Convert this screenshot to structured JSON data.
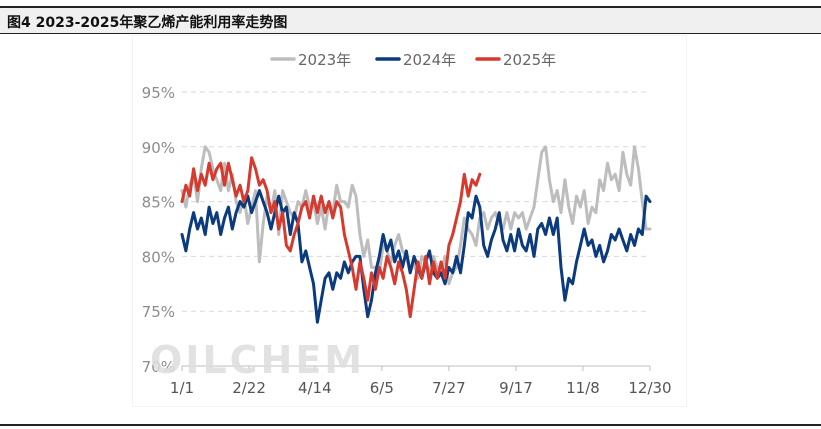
{
  "header": {
    "title": "图4 2023-2025年聚乙烯产能利用率走势图"
  },
  "watermark": "OILCHEM",
  "chart_data": {
    "type": "line",
    "title": "",
    "xlabel": "",
    "ylabel": "",
    "x_ticks": [
      "1/1",
      "2/22",
      "4/14",
      "6/5",
      "7/27",
      "9/17",
      "11/8",
      "12/30"
    ],
    "x_tick_days": [
      1,
      53,
      104,
      156,
      208,
      260,
      312,
      364
    ],
    "y_ticks": [
      "70%",
      "75%",
      "80%",
      "85%",
      "90%",
      "95%"
    ],
    "ylim": [
      70,
      95
    ],
    "xlim": [
      1,
      364
    ],
    "grid": true,
    "legend_position": "top",
    "series": [
      {
        "name": "2023年",
        "color": "#bdbdbd",
        "x": [
          1,
          4,
          7,
          10,
          13,
          16,
          19,
          22,
          25,
          28,
          31,
          34,
          37,
          40,
          43,
          46,
          49,
          52,
          55,
          58,
          61,
          64,
          67,
          70,
          73,
          76,
          79,
          82,
          85,
          88,
          91,
          94,
          97,
          100,
          103,
          106,
          109,
          112,
          115,
          118,
          121,
          124,
          127,
          130,
          133,
          136,
          139,
          142,
          145,
          148,
          151,
          154,
          157,
          160,
          163,
          166,
          169,
          172,
          175,
          178,
          181,
          184,
          187,
          190,
          193,
          196,
          199,
          202,
          205,
          208,
          211,
          214,
          217,
          220,
          223,
          226,
          229,
          232,
          235,
          238,
          241,
          244,
          247,
          250,
          253,
          256,
          259,
          262,
          265,
          268,
          271,
          274,
          277,
          280,
          283,
          286,
          289,
          292,
          295,
          298,
          301,
          304,
          307,
          310,
          313,
          316,
          319,
          322,
          325,
          328,
          331,
          334,
          337,
          340,
          343,
          346,
          349,
          352,
          355,
          358,
          361,
          364
        ],
        "values": [
          86,
          84.5,
          86.5,
          87.5,
          85,
          88,
          90,
          89.5,
          88,
          87,
          86,
          88.5,
          86,
          87.5,
          85,
          84,
          85.5,
          83,
          84.5,
          86,
          79.5,
          83,
          85.5,
          84,
          86,
          82,
          86,
          85,
          84,
          83.5,
          85,
          84.5,
          86,
          84.5,
          85,
          83,
          84.5,
          82.5,
          85,
          84,
          86.5,
          85,
          85,
          84.5,
          86.5,
          85.5,
          82,
          80,
          81.5,
          79,
          79,
          78.5,
          81,
          80.5,
          79.5,
          81,
          82,
          80.5,
          80,
          78.5,
          79.5,
          78,
          80,
          79.5,
          78.5,
          80,
          79,
          78.5,
          80,
          77.5,
          78.5,
          79,
          81,
          83.5,
          82.5,
          82,
          81,
          83.5,
          84,
          82.5,
          83.5,
          84,
          83,
          82.5,
          84,
          82.5,
          84,
          83.5,
          84,
          82.5,
          83.5,
          84.5,
          87,
          89.5,
          90,
          87,
          85,
          86,
          84,
          87,
          84.5,
          83,
          85.5,
          84.5,
          86,
          83,
          84.5,
          84,
          87,
          86,
          88.5,
          87,
          87.5,
          86,
          89.5,
          87.5,
          86.5,
          90,
          88,
          85,
          82.5,
          82.5
        ]
      },
      {
        "name": "2024年",
        "color": "#0b3a7e",
        "x": [
          1,
          4,
          7,
          10,
          13,
          16,
          19,
          22,
          25,
          28,
          31,
          34,
          37,
          40,
          43,
          46,
          49,
          52,
          55,
          58,
          61,
          64,
          67,
          70,
          73,
          76,
          79,
          82,
          85,
          88,
          91,
          94,
          97,
          100,
          103,
          106,
          109,
          112,
          115,
          118,
          121,
          124,
          127,
          130,
          133,
          136,
          139,
          142,
          145,
          148,
          151,
          154,
          157,
          160,
          163,
          166,
          169,
          172,
          175,
          178,
          181,
          184,
          187,
          190,
          193,
          196,
          199,
          202,
          205,
          208,
          211,
          214,
          217,
          220,
          223,
          226,
          229,
          232,
          235,
          238,
          241,
          244,
          247,
          250,
          253,
          256,
          259,
          262,
          265,
          268,
          271,
          274,
          277,
          280,
          283,
          286,
          289,
          292,
          295,
          298,
          301,
          304,
          307,
          310,
          313,
          316,
          319,
          322,
          325,
          328,
          331,
          334,
          337,
          340,
          343,
          346,
          349,
          352,
          355,
          358,
          361,
          364
        ],
        "values": [
          82,
          80.5,
          82.5,
          84,
          82.5,
          83.5,
          82,
          84.5,
          83,
          84,
          82,
          83.5,
          84.5,
          82.5,
          84,
          85,
          84.5,
          85.5,
          84,
          85,
          86,
          85,
          84,
          82.5,
          84,
          85.5,
          84,
          84.5,
          82,
          84,
          83,
          79.5,
          80.5,
          79,
          77.5,
          74,
          76,
          78,
          78.5,
          77,
          78.5,
          78,
          79.5,
          78.5,
          79.5,
          80,
          80,
          77,
          74.5,
          76,
          78.5,
          80,
          82,
          80.5,
          81.5,
          79.5,
          80.5,
          79,
          80.5,
          78.5,
          80,
          79,
          78,
          79.5,
          80.5,
          78.5,
          78,
          78.5,
          77.5,
          79,
          78.5,
          80,
          78.5,
          81,
          84,
          83.5,
          85.5,
          84.5,
          81,
          80,
          81.5,
          82.5,
          84,
          81.5,
          80.5,
          82,
          80.5,
          82.5,
          81,
          80.5,
          82,
          80,
          82.5,
          83,
          82,
          83.5,
          82,
          83.5,
          79,
          76,
          78,
          77.5,
          79.5,
          81,
          82.5,
          81,
          81.5,
          80,
          81,
          79.5,
          80.5,
          82,
          81.5,
          82.5,
          81.5,
          80.5,
          82,
          81,
          82.5,
          82,
          85.5,
          85
        ]
      },
      {
        "name": "2025年",
        "color": "#d63a2f",
        "x": [
          1,
          4,
          7,
          10,
          13,
          16,
          19,
          22,
          25,
          28,
          31,
          34,
          37,
          40,
          43,
          46,
          49,
          52,
          55,
          58,
          61,
          64,
          67,
          70,
          73,
          76,
          79,
          82,
          85,
          88,
          91,
          94,
          97,
          100,
          103,
          106,
          109,
          112,
          115,
          118,
          121,
          124,
          127,
          130,
          133,
          136,
          139,
          142,
          145,
          148,
          151,
          154,
          157,
          160,
          163,
          166,
          169,
          172,
          175,
          178,
          181,
          184,
          187,
          190,
          193,
          196,
          199,
          202,
          205,
          208,
          211,
          214,
          217,
          220,
          223,
          226,
          229,
          232
        ],
        "values": [
          85,
          86.5,
          85.5,
          88,
          86,
          87.5,
          86.5,
          88.5,
          87,
          88,
          88.5,
          86.5,
          88.5,
          87,
          85.5,
          86.5,
          85,
          86,
          89,
          88,
          86.5,
          87,
          86,
          84,
          85,
          82.5,
          84,
          81,
          80.5,
          82,
          83,
          84.5,
          85,
          83.5,
          85.5,
          84,
          85.5,
          84,
          85,
          83.5,
          85,
          84.5,
          82,
          80.5,
          79,
          77,
          79.5,
          78,
          76,
          78.5,
          77,
          79,
          78,
          80,
          79,
          77.5,
          79.5,
          78.5,
          77,
          74.5,
          77,
          79.5,
          78,
          80,
          77.5,
          79.5,
          78,
          79.5,
          78,
          81,
          82,
          83.5,
          85,
          87.5,
          85.5,
          87,
          86.5,
          87.5
        ]
      }
    ]
  }
}
